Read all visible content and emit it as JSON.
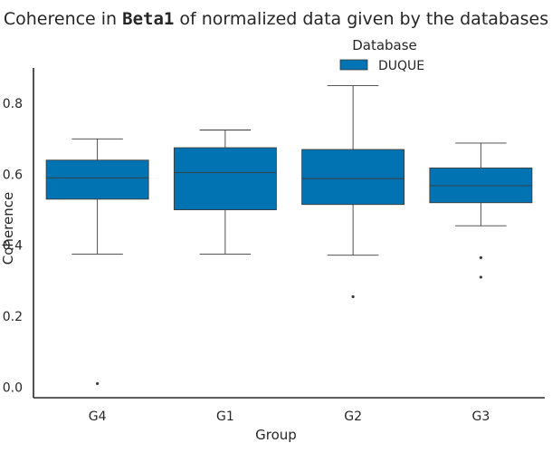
{
  "chart_data": {
    "type": "box",
    "title": {
      "prefix": "Coherence in ",
      "code": "Beta1",
      "suffix": " of normalized data given by the databases"
    },
    "xlabel": "Group",
    "ylabel": "Coherence",
    "categories": [
      "G4",
      "G1",
      "G2",
      "G3"
    ],
    "ylim": [
      -0.03,
      0.9
    ],
    "yticks": [
      0.0,
      0.2,
      0.4,
      0.6,
      0.8
    ],
    "grid": false,
    "legend": {
      "title": "Database",
      "placement": "top-center",
      "entries": [
        "DUQUE"
      ]
    },
    "series": [
      {
        "name": "DUQUE",
        "color": "#0173b2",
        "boxes": [
          {
            "category": "G4",
            "whisker_low": 0.375,
            "q1": 0.53,
            "median": 0.59,
            "q3": 0.64,
            "whisker_high": 0.7,
            "outliers": [
              0.01
            ]
          },
          {
            "category": "G1",
            "whisker_low": 0.375,
            "q1": 0.5,
            "median": 0.605,
            "q3": 0.675,
            "whisker_high": 0.725,
            "outliers": []
          },
          {
            "category": "G2",
            "whisker_low": 0.372,
            "q1": 0.515,
            "median": 0.588,
            "q3": 0.67,
            "whisker_high": 0.85,
            "outliers": [
              0.255
            ]
          },
          {
            "category": "G3",
            "whisker_low": 0.455,
            "q1": 0.52,
            "median": 0.568,
            "q3": 0.618,
            "whisker_high": 0.688,
            "outliers": [
              0.365,
              0.31
            ]
          }
        ]
      }
    ]
  }
}
